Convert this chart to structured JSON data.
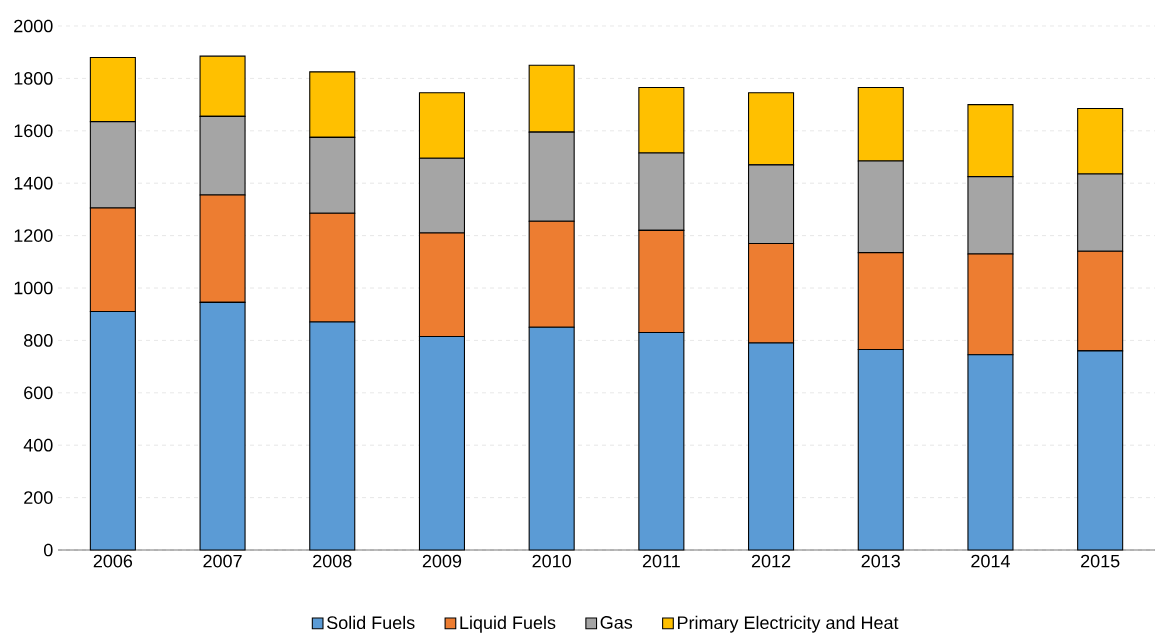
{
  "chart_data": {
    "type": "bar",
    "stacked": true,
    "categories": [
      "2006",
      "2007",
      "2008",
      "2009",
      "2010",
      "2011",
      "2012",
      "2013",
      "2014",
      "2015"
    ],
    "series": [
      {
        "name": "Solid Fuels",
        "color": "#5b9bd5",
        "values": [
          910,
          945,
          870,
          815,
          850,
          830,
          790,
          765,
          745,
          760
        ]
      },
      {
        "name": "Liquid Fuels",
        "color": "#ed7d31",
        "values": [
          395,
          410,
          415,
          395,
          405,
          390,
          380,
          370,
          385,
          380
        ]
      },
      {
        "name": "Gas",
        "color": "#a5a5a5",
        "values": [
          330,
          300,
          290,
          285,
          340,
          295,
          300,
          350,
          295,
          295
        ]
      },
      {
        "name": "Primary Electricity and Heat",
        "color": "#ffc000",
        "values": [
          245,
          230,
          250,
          250,
          255,
          250,
          275,
          280,
          275,
          250
        ]
      }
    ],
    "ylim": [
      0,
      2000
    ],
    "yticks": [
      0,
      200,
      400,
      600,
      800,
      1000,
      1200,
      1400,
      1600,
      1800,
      2000
    ],
    "grid": "y",
    "legend": "bottom"
  }
}
